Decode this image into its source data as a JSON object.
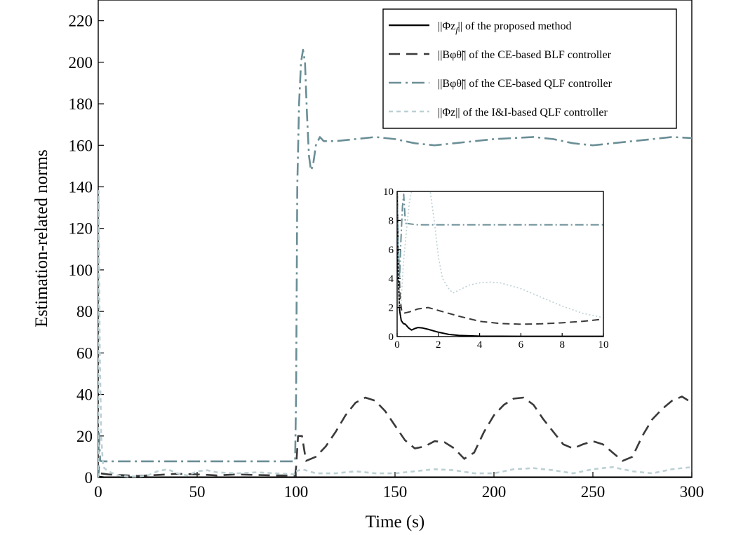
{
  "chart_data": [
    {
      "type": "line",
      "title": "",
      "xlabel": "Time (s)",
      "ylabel": "Estimation-related norms",
      "xlim": [
        0,
        300
      ],
      "ylim": [
        0,
        230
      ],
      "xticks": [
        0,
        50,
        100,
        150,
        200,
        250,
        300
      ],
      "yticks": [
        0,
        20,
        40,
        60,
        80,
        100,
        120,
        140,
        160,
        180,
        200,
        220
      ],
      "grid": false,
      "legend_position": "top-right",
      "series": [
        {
          "name": "||Φz_f|| of the proposed method",
          "legend_main": "||Φz",
          "legend_sub": "f",
          "legend_tail": "|| of the proposed method",
          "color": "#000000",
          "dash": "solid",
          "points": [
            [
              0,
              0.5
            ],
            [
              1,
              0.3
            ],
            [
              3,
              0.1
            ],
            [
              10,
              0.1
            ],
            [
              50,
              0.1
            ],
            [
              100,
              0.1
            ],
            [
              150,
              0.1
            ],
            [
              200,
              0.1
            ],
            [
              250,
              0.1
            ],
            [
              300,
              0.1
            ]
          ]
        },
        {
          "name": "||Bφθ̃|| of the CE-based BLF controller",
          "legend_main": "||Bφθ̃",
          "legend_tail": "|| of the CE-based BLF controller",
          "color": "#3a3a3a",
          "dash": "dashed",
          "points": [
            [
              0,
              0
            ],
            [
              0.3,
              5
            ],
            [
              1,
              2
            ],
            [
              5,
              1.5
            ],
            [
              10,
              1.2
            ],
            [
              20,
              0.8
            ],
            [
              30,
              1.2
            ],
            [
              40,
              1.8
            ],
            [
              50,
              1.5
            ],
            [
              60,
              1
            ],
            [
              70,
              1.5
            ],
            [
              80,
              1.2
            ],
            [
              90,
              1
            ],
            [
              99.5,
              1
            ],
            [
              100,
              5
            ],
            [
              101,
              20
            ],
            [
              103,
              20
            ],
            [
              105,
              8
            ],
            [
              110,
              10
            ],
            [
              115,
              15
            ],
            [
              120,
              22
            ],
            [
              125,
              30
            ],
            [
              130,
              36
            ],
            [
              135,
              38.5
            ],
            [
              140,
              37
            ],
            [
              145,
              32
            ],
            [
              150,
              25
            ],
            [
              155,
              18
            ],
            [
              160,
              14
            ],
            [
              165,
              15
            ],
            [
              170,
              17.5
            ],
            [
              175,
              17
            ],
            [
              180,
              14
            ],
            [
              185,
              9
            ],
            [
              190,
              12
            ],
            [
              195,
              22
            ],
            [
              200,
              30
            ],
            [
              205,
              35
            ],
            [
              210,
              38
            ],
            [
              215,
              38.5
            ],
            [
              220,
              35
            ],
            [
              225,
              28
            ],
            [
              230,
              22
            ],
            [
              235,
              16
            ],
            [
              240,
              14
            ],
            [
              245,
              16
            ],
            [
              250,
              17.5
            ],
            [
              255,
              16
            ],
            [
              260,
              12
            ],
            [
              265,
              8
            ],
            [
              270,
              10
            ],
            [
              275,
              20
            ],
            [
              280,
              28
            ],
            [
              285,
              33
            ],
            [
              290,
              37
            ],
            [
              295,
              39
            ],
            [
              300,
              36
            ]
          ]
        },
        {
          "name": "||Bφθ̃|| of the CE-based QLF controller",
          "legend_main": "||Bφθ̃",
          "legend_tail": "|| of the CE-based QLF controller",
          "color": "#6a8e96",
          "dash": "dashdot",
          "points": [
            [
              0,
              0
            ],
            [
              0.3,
              22
            ],
            [
              1,
              8
            ],
            [
              2,
              7.8
            ],
            [
              50,
              7.8
            ],
            [
              99.5,
              7.8
            ],
            [
              100,
              40
            ],
            [
              100.6,
              140
            ],
            [
              101.5,
              180
            ],
            [
              102.5,
              200
            ],
            [
              103.5,
              206
            ],
            [
              104.5,
              200
            ],
            [
              105.5,
              175
            ],
            [
              106.5,
              155
            ],
            [
              107.5,
              148
            ],
            [
              108.5,
              150
            ],
            [
              110,
              160
            ],
            [
              112,
              164
            ],
            [
              114,
              162
            ],
            [
              120,
              162
            ],
            [
              130,
              163
            ],
            [
              140,
              164
            ],
            [
              150,
              163
            ],
            [
              160,
              161
            ],
            [
              170,
              160
            ],
            [
              180,
              161
            ],
            [
              190,
              162
            ],
            [
              200,
              163
            ],
            [
              210,
              163.5
            ],
            [
              220,
              164
            ],
            [
              230,
              163
            ],
            [
              240,
              161
            ],
            [
              250,
              160
            ],
            [
              260,
              161
            ],
            [
              270,
              162
            ],
            [
              280,
              163
            ],
            [
              290,
              164
            ],
            [
              300,
              163.5
            ]
          ]
        },
        {
          "name": "||Φz|| of the I&I-based QLF controller",
          "legend_main": "||Φz",
          "legend_tail": "|| of the I&I-based QLF controller",
          "color": "#bcd0d4",
          "dash": "dotted",
          "points": [
            [
              0,
              0
            ],
            [
              0.2,
              138
            ],
            [
              0.8,
              60
            ],
            [
              1.5,
              20
            ],
            [
              2.5,
              5
            ],
            [
              5,
              3
            ],
            [
              10,
              1
            ],
            [
              15,
              0.5
            ],
            [
              20,
              0.5
            ],
            [
              25,
              1
            ],
            [
              30,
              3
            ],
            [
              35,
              4
            ],
            [
              40,
              2
            ],
            [
              45,
              1
            ],
            [
              50,
              3
            ],
            [
              55,
              3.5
            ],
            [
              60,
              2.5
            ],
            [
              70,
              2
            ],
            [
              80,
              2.5
            ],
            [
              90,
              2
            ],
            [
              99.5,
              1.5
            ],
            [
              100,
              3
            ],
            [
              103,
              4
            ],
            [
              110,
              2
            ],
            [
              120,
              2
            ],
            [
              130,
              3
            ],
            [
              140,
              2
            ],
            [
              150,
              2
            ],
            [
              160,
              3
            ],
            [
              170,
              4
            ],
            [
              180,
              3.5
            ],
            [
              190,
              2
            ],
            [
              200,
              2
            ],
            [
              210,
              4
            ],
            [
              220,
              4.5
            ],
            [
              230,
              3.5
            ],
            [
              240,
              2
            ],
            [
              250,
              4
            ],
            [
              260,
              5
            ],
            [
              270,
              3
            ],
            [
              280,
              2
            ],
            [
              290,
              4
            ],
            [
              300,
              5
            ]
          ]
        }
      ]
    },
    {
      "type": "line",
      "title": "",
      "xlim": [
        0,
        10
      ],
      "ylim": [
        0,
        10
      ],
      "xticks": [
        0,
        2,
        4,
        6,
        8,
        10
      ],
      "yticks": [
        0,
        2,
        4,
        6,
        8,
        10
      ],
      "grid": false,
      "series": [
        {
          "color": "#000000",
          "dash": "solid",
          "points": [
            [
              0,
              10
            ],
            [
              0.06,
              4
            ],
            [
              0.12,
              1.8
            ],
            [
              0.2,
              1.1
            ],
            [
              0.3,
              0.9
            ],
            [
              0.4,
              0.85
            ],
            [
              0.55,
              0.6
            ],
            [
              0.7,
              0.45
            ],
            [
              0.85,
              0.55
            ],
            [
              1,
              0.62
            ],
            [
              1.2,
              0.6
            ],
            [
              1.5,
              0.5
            ],
            [
              2,
              0.3
            ],
            [
              2.5,
              0.15
            ],
            [
              3,
              0.08
            ],
            [
              4,
              0.03
            ],
            [
              6,
              0.02
            ],
            [
              8,
              0.02
            ],
            [
              10,
              0.02
            ]
          ]
        },
        {
          "color": "#3a3a3a",
          "dash": "dashed",
          "points": [
            [
              0,
              10
            ],
            [
              0.08,
              5
            ],
            [
              0.15,
              2.5
            ],
            [
              0.22,
              1.8
            ],
            [
              0.3,
              1.6
            ],
            [
              0.6,
              1.7
            ],
            [
              1,
              1.9
            ],
            [
              1.5,
              2
            ],
            [
              2,
              1.8
            ],
            [
              3,
              1.4
            ],
            [
              4,
              1.05
            ],
            [
              5,
              0.9
            ],
            [
              6,
              0.85
            ],
            [
              7,
              0.88
            ],
            [
              8,
              0.95
            ],
            [
              9,
              1.05
            ],
            [
              10,
              1.2
            ]
          ]
        },
        {
          "color": "#6a8e96",
          "dash": "dashdot",
          "points": [
            [
              0,
              10
            ],
            [
              0.06,
              6
            ],
            [
              0.12,
              4
            ],
            [
              0.18,
              6.5
            ],
            [
              0.26,
              9
            ],
            [
              0.32,
              9.8
            ],
            [
              0.4,
              7.8
            ],
            [
              1,
              7.7
            ],
            [
              5,
              7.7
            ],
            [
              10,
              7.7
            ]
          ]
        },
        {
          "color": "#bcd0d4",
          "dash": "dotted",
          "points": [
            [
              0,
              10
            ],
            [
              0.06,
              4
            ],
            [
              0.12,
              2
            ],
            [
              0.2,
              2.5
            ],
            [
              0.3,
              5
            ],
            [
              0.5,
              8
            ],
            [
              0.6,
              9.3
            ],
            [
              0.7,
              10
            ],
            [
              1.4,
              10
            ],
            [
              1.6,
              10
            ],
            [
              1.8,
              8
            ],
            [
              2,
              5.5
            ],
            [
              2.2,
              4
            ],
            [
              2.5,
              3.3
            ],
            [
              2.7,
              3
            ],
            [
              3,
              3.2
            ],
            [
              3.5,
              3.55
            ],
            [
              4,
              3.7
            ],
            [
              4.5,
              3.75
            ],
            [
              5,
              3.7
            ],
            [
              6,
              3.3
            ],
            [
              7,
              2.7
            ],
            [
              8,
              2.1
            ],
            [
              9,
              1.6
            ],
            [
              10,
              1.3
            ]
          ]
        }
      ]
    }
  ]
}
